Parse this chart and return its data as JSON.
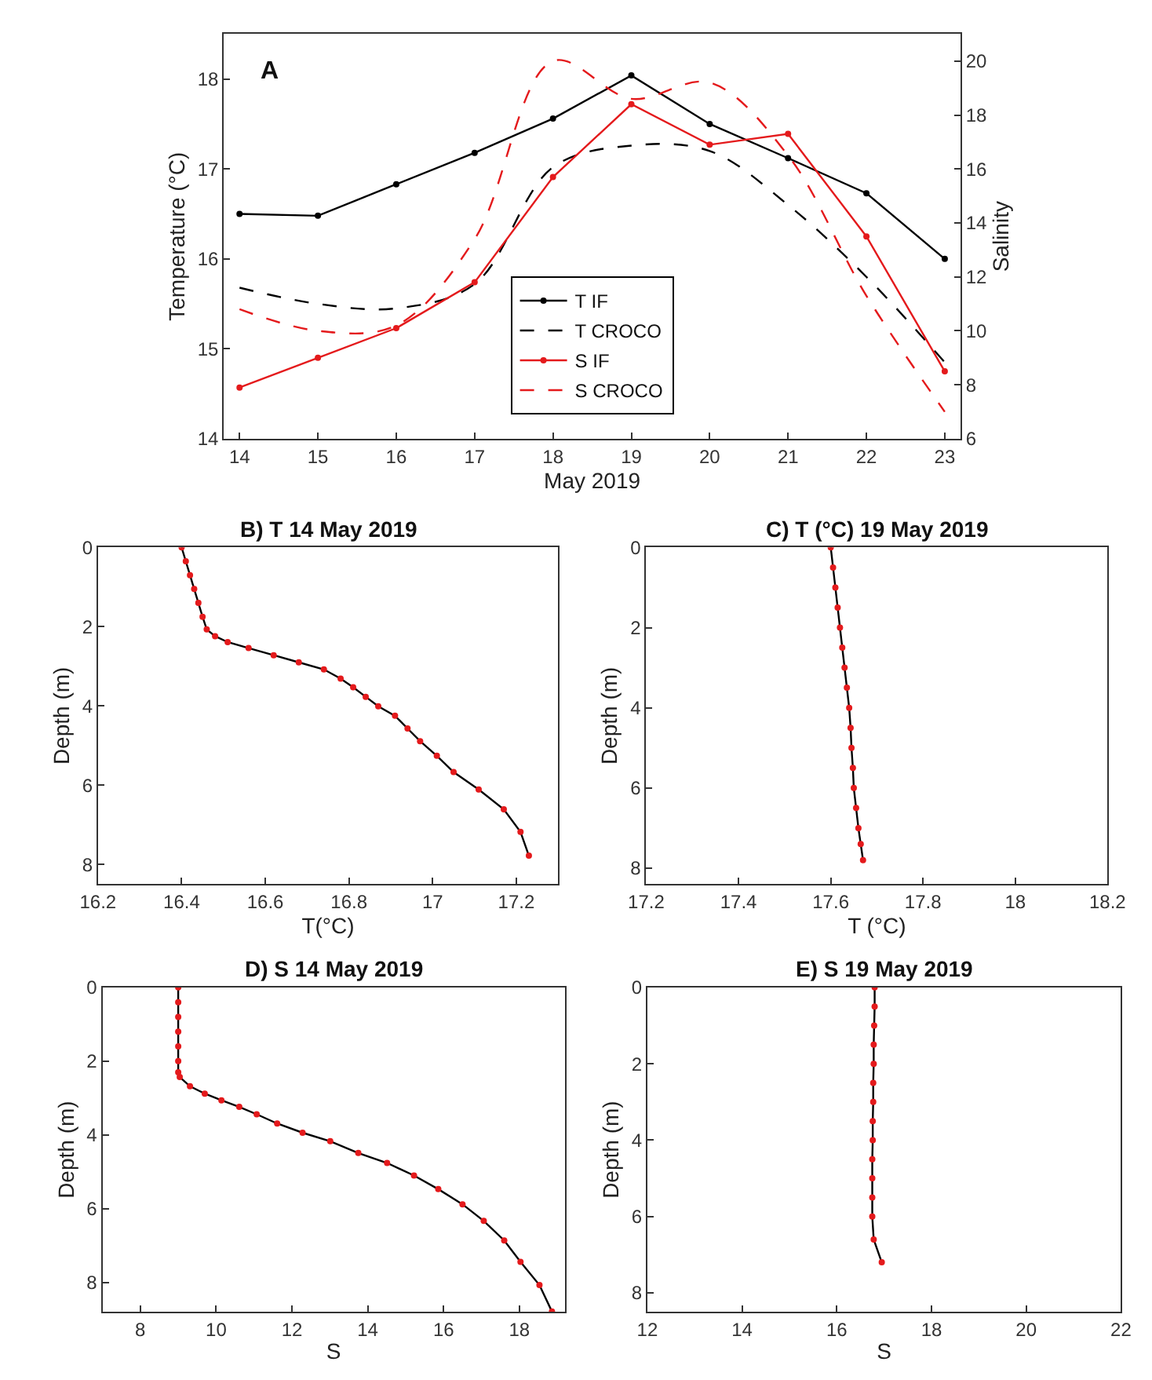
{
  "chart_data": [
    {
      "type": "line",
      "xlabel": "May 2019",
      "ylabel": "Temperature (°C)",
      "y2label": "Salinity",
      "annotations": [
        "A"
      ],
      "x": [
        14,
        15,
        16,
        17,
        18,
        19,
        20,
        21,
        22,
        23
      ],
      "xlim": [
        13.8,
        23.2
      ],
      "xticks": [
        14,
        15,
        16,
        17,
        18,
        19,
        20,
        21,
        22,
        23
      ],
      "ylim": [
        14,
        18.5
      ],
      "yticks": [
        14,
        15,
        16,
        17,
        18
      ],
      "y2lim": [
        6,
        21
      ],
      "y2ticks": [
        6,
        8,
        10,
        12,
        14,
        16,
        18,
        20
      ],
      "grid": false,
      "legend": "bottom",
      "series": [
        {
          "name": "T IF",
          "color": "#000000",
          "marker": "circle",
          "line_style": "solid",
          "values": [
            16.5,
            16.48,
            16.83,
            17.18,
            17.56,
            18.04,
            17.5,
            17.12,
            16.73,
            16.0
          ]
        },
        {
          "name": "T CROCO",
          "color": "#000000",
          "marker": "none",
          "line_style": "dashed",
          "values": [
            15.68,
            15.5,
            15.45,
            15.72,
            17.02,
            17.26,
            17.2,
            16.6,
            15.8,
            14.85
          ]
        },
        {
          "name": "S IF",
          "color": "#e41a1c",
          "marker": "circle",
          "line_style": "solid",
          "axis": "y2",
          "values": [
            7.9,
            9.0,
            10.1,
            11.8,
            15.7,
            18.4,
            16.9,
            17.3,
            13.5,
            8.5
          ]
        },
        {
          "name": "S CROCO",
          "color": "#e41a1c",
          "marker": "none",
          "line_style": "dashed",
          "axis": "y2",
          "values": [
            10.8,
            10.0,
            10.2,
            13.4,
            20.0,
            18.6,
            19.2,
            16.5,
            11.3,
            7.0
          ]
        }
      ]
    },
    {
      "type": "line",
      "title": "B) T 14 May 2019",
      "xlabel": "T(°C)",
      "ylabel": "Depth (m)",
      "orientation": "horizontal",
      "xlim": [
        16.2,
        17.3
      ],
      "xticks": [
        16.2,
        16.4,
        16.6,
        16.8,
        17,
        17.2
      ],
      "ylim": [
        8.5,
        0
      ],
      "yticks": [
        0,
        2,
        4,
        6,
        8
      ],
      "grid": false,
      "legend": false,
      "x": [
        0,
        0.35,
        0.7,
        1.05,
        1.4,
        1.75,
        2.07,
        2.24,
        2.39,
        2.54,
        2.72,
        2.9,
        3.08,
        3.31,
        3.53,
        3.77,
        4.01,
        4.25,
        4.57,
        4.89,
        5.26,
        5.67,
        6.11,
        6.61,
        7.18,
        7.78
      ],
      "series": [
        {
          "color": "#000000",
          "marker": "none",
          "line_style": "solid",
          "values": [
            16.4,
            16.41,
            16.42,
            16.43,
            16.44,
            16.45,
            16.46,
            16.48,
            16.51,
            16.56,
            16.62,
            16.68,
            16.74,
            16.78,
            16.81,
            16.84,
            16.87,
            16.91,
            16.94,
            16.97,
            17.01,
            17.05,
            17.11,
            17.17,
            17.21,
            17.23
          ]
        },
        {
          "type": "scatter",
          "color": "#e41a1c",
          "marker": "circle",
          "values": [
            16.4,
            16.41,
            16.42,
            16.43,
            16.44,
            16.45,
            16.46,
            16.48,
            16.51,
            16.56,
            16.62,
            16.68,
            16.74,
            16.78,
            16.81,
            16.84,
            16.87,
            16.91,
            16.94,
            16.97,
            17.01,
            17.05,
            17.11,
            17.17,
            17.21,
            17.23
          ]
        }
      ]
    },
    {
      "type": "line",
      "title": "C) T (°C) 19 May 2019",
      "xlabel": "T (°C)",
      "ylabel": "Depth (m)",
      "orientation": "horizontal",
      "xlim": [
        17.2,
        18.2
      ],
      "xticks": [
        17.2,
        17.4,
        17.6,
        17.8,
        18,
        18.2
      ],
      "ylim": [
        8.4,
        0
      ],
      "yticks": [
        0,
        2,
        4,
        6,
        8
      ],
      "grid": false,
      "legend": false,
      "x": [
        0,
        0.5,
        1,
        1.5,
        2,
        2.5,
        3,
        3.5,
        4,
        4.5,
        5,
        5.5,
        6,
        6.5,
        7,
        7.4,
        7.8
      ],
      "series": [
        {
          "color": "#000000",
          "marker": "none",
          "line_style": "solid",
          "values": [
            17.6,
            17.605,
            17.61,
            17.615,
            17.62,
            17.625,
            17.63,
            17.635,
            17.64,
            17.643,
            17.645,
            17.648,
            17.65,
            17.655,
            17.66,
            17.665,
            17.67
          ]
        },
        {
          "type": "scatter",
          "color": "#e41a1c",
          "marker": "circle",
          "values": [
            17.6,
            17.605,
            17.61,
            17.615,
            17.62,
            17.625,
            17.63,
            17.635,
            17.64,
            17.643,
            17.645,
            17.648,
            17.65,
            17.655,
            17.66,
            17.665,
            17.67
          ]
        }
      ]
    },
    {
      "type": "line",
      "title": "D) S 14 May 2019",
      "xlabel": "S",
      "ylabel": "Depth (m)",
      "orientation": "horizontal",
      "xlim": [
        7,
        19.2
      ],
      "xticks": [
        8,
        10,
        12,
        14,
        16,
        18
      ],
      "ylim": [
        8.8,
        0
      ],
      "yticks": [
        0,
        2,
        4,
        6,
        8
      ],
      "grid": false,
      "legend": false,
      "x": [
        0,
        0.4,
        0.8,
        1.2,
        1.6,
        2.0,
        2.3,
        2.43,
        2.68,
        2.88,
        3.06,
        3.24,
        3.44,
        3.69,
        3.94,
        4.17,
        4.49,
        4.76,
        5.1,
        5.47,
        5.88,
        6.33,
        6.86,
        7.44,
        8.07,
        8.79
      ],
      "series": [
        {
          "color": "#000000",
          "marker": "none",
          "line_style": "solid",
          "values": [
            9.0,
            9.0,
            9.0,
            9.0,
            9.0,
            9.0,
            9.0,
            9.04,
            9.31,
            9.7,
            10.14,
            10.61,
            11.07,
            11.61,
            12.28,
            13.01,
            13.75,
            14.51,
            15.22,
            15.86,
            16.5,
            17.06,
            17.6,
            18.03,
            18.53,
            18.86
          ]
        },
        {
          "type": "scatter",
          "color": "#e41a1c",
          "marker": "circle",
          "values": [
            9.0,
            9.0,
            9.0,
            9.0,
            9.0,
            9.0,
            9.0,
            9.04,
            9.31,
            9.7,
            10.14,
            10.61,
            11.07,
            11.61,
            12.28,
            13.01,
            13.75,
            14.51,
            15.22,
            15.86,
            16.5,
            17.06,
            17.6,
            18.03,
            18.53,
            18.86
          ]
        }
      ]
    },
    {
      "type": "line",
      "title": "E) S 19 May 2019",
      "xlabel": "S",
      "ylabel": "Depth (m)",
      "orientation": "horizontal",
      "xlim": [
        12,
        22
      ],
      "xticks": [
        12,
        14,
        16,
        18,
        20,
        22
      ],
      "ylim": [
        8.5,
        0
      ],
      "yticks": [
        0,
        2,
        4,
        6,
        8
      ],
      "grid": false,
      "legend": false,
      "x": [
        0,
        0.5,
        1,
        1.5,
        2,
        2.5,
        3,
        3.5,
        4,
        4.5,
        5,
        5.5,
        6,
        6.6,
        7.2
      ],
      "series": [
        {
          "color": "#000000",
          "marker": "none",
          "line_style": "solid",
          "values": [
            16.8,
            16.8,
            16.79,
            16.78,
            16.78,
            16.77,
            16.77,
            16.76,
            16.76,
            16.75,
            16.75,
            16.75,
            16.75,
            16.78,
            16.95
          ]
        },
        {
          "type": "scatter",
          "color": "#e41a1c",
          "marker": "circle",
          "values": [
            16.8,
            16.8,
            16.79,
            16.78,
            16.78,
            16.77,
            16.77,
            16.76,
            16.76,
            16.75,
            16.75,
            16.75,
            16.75,
            16.78,
            16.95
          ]
        }
      ]
    }
  ]
}
